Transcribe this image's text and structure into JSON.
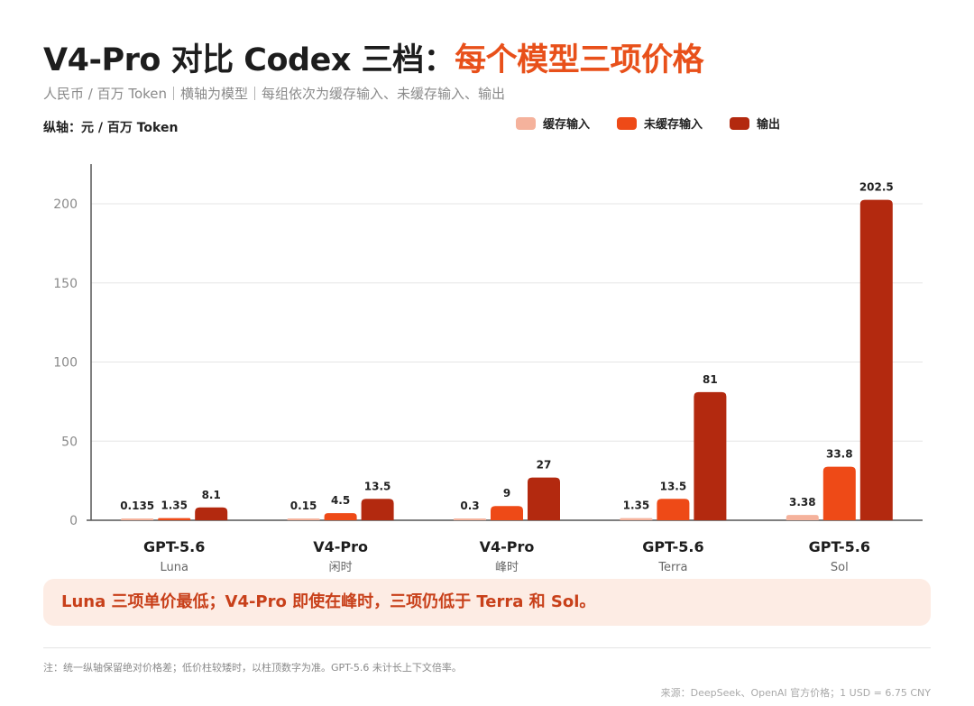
{
  "header": {
    "title_main": "V4-Pro 对比 Codex 三档：",
    "title_accent": "每个模型三项价格",
    "subtitle": "人民币 / 百万 Token｜横轴为模型｜每组依次为缓存输入、未缓存输入、输出",
    "y_unit": "纵轴：元 / 百万 Token"
  },
  "colors": {
    "accent": "#e8501a",
    "cached_input": "#f5b29c",
    "uncached_input": "#ee4a17",
    "output": "#b3290f"
  },
  "chart_data": {
    "type": "bar",
    "categories": [
      "GPT-5.6",
      "V4-Pro",
      "V4-Pro",
      "GPT-5.6",
      "GPT-5.6"
    ],
    "category_sublabels": [
      "Luna",
      "闲时",
      "峰时",
      "Terra",
      "Sol"
    ],
    "series": [
      {
        "name": "缓存输入",
        "color": "#f5b29c",
        "values": [
          0.135,
          0.15,
          0.3,
          1.35,
          3.38
        ]
      },
      {
        "name": "未缓存输入",
        "color": "#ee4a17",
        "values": [
          1.35,
          4.5,
          9,
          13.5,
          33.8
        ]
      },
      {
        "name": "输出",
        "color": "#b3290f",
        "values": [
          8.1,
          13.5,
          27,
          81,
          202.5
        ]
      }
    ],
    "ylim": [
      0,
      225
    ],
    "yticks": [
      0,
      50,
      100,
      150,
      200
    ],
    "grid": true,
    "legend": "top-right"
  },
  "callout": "Luna 三项单价最低；V4-Pro 即使在峰时，三项仍低于 Terra 和 Sol。",
  "footnote": "注：统一纵轴保留绝对价格差；低价柱较矮时，以柱顶数字为准。GPT-5.6 未计长上下文倍率。",
  "source": "来源：DeepSeek、OpenAI 官方价格；1 USD = 6.75 CNY"
}
